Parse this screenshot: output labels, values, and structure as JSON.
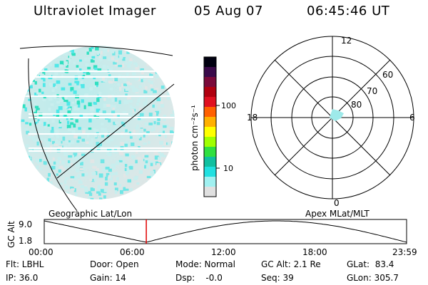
{
  "header": {
    "title": "Ultraviolet Imager",
    "date": "05 Aug 07",
    "time": "06:45:46 UT"
  },
  "colorbar": {
    "unit_label": "photon cm⁻²s⁻¹",
    "tick_labels": [
      "100",
      "10"
    ],
    "colors": [
      "#000010",
      "#3a0a4a",
      "#7a0a3a",
      "#b00010",
      "#e01020",
      "#ff6000",
      "#ffb000",
      "#ffff00",
      "#a0ff00",
      "#30e040",
      "#10c0a0",
      "#20e0e0",
      "#a0f0f0",
      "#e0e0e0"
    ]
  },
  "polar_plot": {
    "mlt_labels": {
      "top": "12",
      "left": "18",
      "right": "6",
      "bottom": "0"
    },
    "lat_labels": [
      "60",
      "70",
      "80"
    ]
  },
  "timeline": {
    "y_axis_label": "GC Alt",
    "y_ticks": [
      "9.0",
      "1.8"
    ],
    "left_caption": "Geographic Lat/Lon",
    "right_caption": "Apex MLat/MLT",
    "x_ticks": [
      "00:00",
      "06:00",
      "12:00",
      "18:00",
      "23:59"
    ],
    "current_time_marker_hours": 6.76,
    "marker_color": "#e00000"
  },
  "info": {
    "flt": "Flt: LBHL",
    "ip": "IP: 36.0",
    "door": "Door: Open",
    "gain": "Gain: 14",
    "mode": "Mode: Normal",
    "dsp": "Dsp:    -0.0",
    "gc_alt": "GC Alt: 2.1 Re",
    "seq": "Seq: 39",
    "glat": "GLat:  83.4",
    "glon": "GLon: 305.7"
  }
}
